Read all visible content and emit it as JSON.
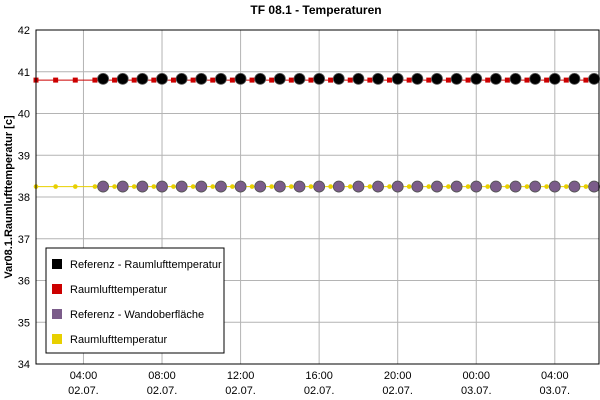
{
  "chart_data": {
    "type": "scatter",
    "title": "TF 08.1 - Temperaturen",
    "xlabel": "",
    "ylabel": "Var08.1.Raumlufttemperatur [c]",
    "ylim": [
      34,
      42
    ],
    "yticks": [
      34,
      35,
      36,
      37,
      38,
      39,
      40,
      41,
      42
    ],
    "xlim": [
      "02.07. 01:35",
      "03.07. 06:15"
    ],
    "xticks": [
      {
        "time": "02.07. 04:00",
        "line1": "04:00",
        "line2": "02.07."
      },
      {
        "time": "02.07. 08:00",
        "line1": "08:00",
        "line2": "02.07."
      },
      {
        "time": "02.07. 12:00",
        "line1": "12:00",
        "line2": "02.07."
      },
      {
        "time": "02.07. 16:00",
        "line1": "16:00",
        "line2": "02.07."
      },
      {
        "time": "02.07. 20:00",
        "line1": "20:00",
        "line2": "02.07."
      },
      {
        "time": "03.07. 00:00",
        "line1": "00:00",
        "line2": "03.07."
      },
      {
        "time": "03.07. 04:00",
        "line1": "04:00",
        "line2": "03.07."
      }
    ],
    "grid": true,
    "legend_position": "bottom-left",
    "series": [
      {
        "name": "Referenz - Raumlufttemperatur",
        "color": "#000000",
        "marker": "circle",
        "start": "02.07. 05:00",
        "end": "03.07. 06:00",
        "step_minutes": 60,
        "value": 40.83
      },
      {
        "name": "Raumlufttemperatur",
        "color": "#cc0000",
        "marker": "square",
        "line": true,
        "start": "02.07. 01:35",
        "end": "03.07. 06:15",
        "step_minutes": 60,
        "value": 40.8
      },
      {
        "name": "Referenz - Wandoberfläche",
        "color": "#7b5c8a",
        "marker": "circle",
        "start": "02.07. 05:00",
        "end": "03.07. 06:00",
        "step_minutes": 60,
        "value": 38.25
      },
      {
        "name": "Raumlufttemperatur",
        "color": "#e8d000",
        "marker": "dot",
        "line": true,
        "start": "02.07. 01:35",
        "end": "03.07. 06:15",
        "step_minutes": 60,
        "value": 38.25
      }
    ]
  }
}
